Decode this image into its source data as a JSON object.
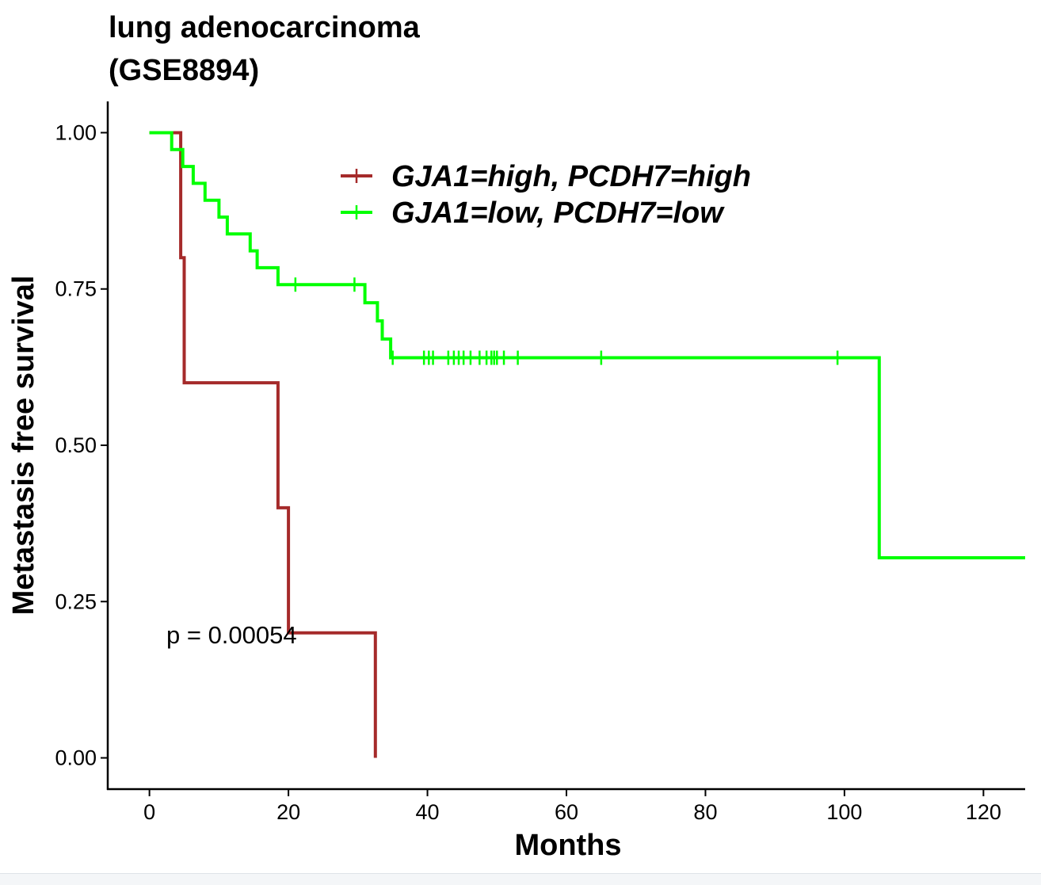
{
  "chart_data": {
    "type": "line",
    "subtype": "kaplan-meier step",
    "title_lines": [
      "lung adenocarcinoma",
      "(GSE8894)"
    ],
    "xlabel": "Months",
    "ylabel": "Metastasis free survival",
    "xlim": [
      -6,
      126
    ],
    "ylim": [
      -0.05,
      1.05
    ],
    "x_ticks": [
      0,
      20,
      40,
      60,
      80,
      100,
      120
    ],
    "y_ticks": [
      0,
      0.25,
      0.5,
      0.75,
      1
    ],
    "y_tick_labels": [
      "0.00",
      "0.25",
      "0.50",
      "0.75",
      "1.00"
    ],
    "grid": false,
    "legend_position": "top-center",
    "annotation": "p = 0.00054",
    "series": [
      {
        "name": "GJA1=high, PCDH7=high",
        "color": "#a52a2a",
        "steps": [
          [
            0,
            1.0
          ],
          [
            4.5,
            1.0
          ],
          [
            4.5,
            0.8
          ],
          [
            5,
            0.8
          ],
          [
            5,
            0.6
          ],
          [
            18.5,
            0.6
          ],
          [
            18.5,
            0.4
          ],
          [
            20,
            0.4
          ],
          [
            20,
            0.2
          ],
          [
            32.5,
            0.2
          ],
          [
            32.5,
            0.0
          ]
        ],
        "censored_x": []
      },
      {
        "name": "GJA1=low, PCDH7=low",
        "color": "#00ff00",
        "steps": [
          [
            0,
            1.0
          ],
          [
            3.2,
            1.0
          ],
          [
            3.2,
            0.973
          ],
          [
            4.8,
            0.973
          ],
          [
            4.8,
            0.946
          ],
          [
            6.3,
            0.946
          ],
          [
            6.3,
            0.919
          ],
          [
            8,
            0.919
          ],
          [
            8,
            0.892
          ],
          [
            10,
            0.892
          ],
          [
            10,
            0.865
          ],
          [
            11.2,
            0.865
          ],
          [
            11.2,
            0.838
          ],
          [
            14.5,
            0.838
          ],
          [
            14.5,
            0.811
          ],
          [
            15.5,
            0.811
          ],
          [
            15.5,
            0.784
          ],
          [
            18.5,
            0.784
          ],
          [
            18.5,
            0.757
          ],
          [
            31,
            0.757
          ],
          [
            31,
            0.728
          ],
          [
            32.8,
            0.728
          ],
          [
            32.8,
            0.699
          ],
          [
            33.5,
            0.699
          ],
          [
            33.5,
            0.67
          ],
          [
            34.7,
            0.67
          ],
          [
            34.7,
            0.64
          ],
          [
            105,
            0.64
          ],
          [
            105,
            0.32
          ],
          [
            126,
            0.32
          ]
        ],
        "censored_x": [
          21,
          29.5,
          35,
          39.5,
          40.2,
          40.8,
          43,
          43.8,
          44.5,
          45.2,
          46.2,
          47.5,
          48.5,
          49.2,
          49.6,
          50,
          51,
          53,
          65,
          99
        ]
      }
    ]
  }
}
